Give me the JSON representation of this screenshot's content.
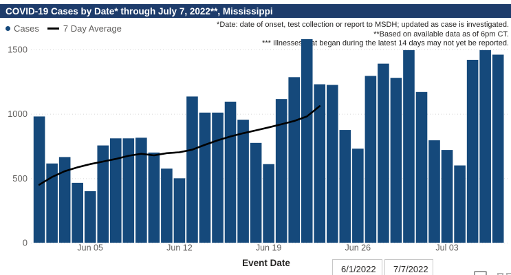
{
  "header": {
    "title": "COVID-19 Cases by Date* through July 7, 2022**, Mississippi",
    "bg_color": "#1e3c6b"
  },
  "legend": {
    "cases_label": "Cases",
    "avg_label": "7 Day Average",
    "cases_color": "#15497b",
    "avg_color": "#000000"
  },
  "notes": {
    "line1": "*Date: date of onset, test collection or report to MSDH; updated as case is investigated.",
    "line2": "**Based on available data as of 6pm CT.",
    "line3": "*** Illnesses that began during the latest 14 days may not yet be reported."
  },
  "chart_data": {
    "type": "bar",
    "title": "COVID-19 Cases by Date* through July 7, 2022**, Mississippi",
    "xlabel": "Event Date",
    "ylabel": "",
    "ylim": [
      0,
      1620
    ],
    "grid": "dotted-horizontal",
    "legend_position": "top-left",
    "bar_color": "#15497b",
    "line_color": "#000000",
    "x": [
      "Jun 1",
      "Jun 2",
      "Jun 3",
      "Jun 4",
      "Jun 5",
      "Jun 6",
      "Jun 7",
      "Jun 8",
      "Jun 9",
      "Jun 10",
      "Jun 11",
      "Jun 12",
      "Jun 13",
      "Jun 14",
      "Jun 15",
      "Jun 16",
      "Jun 17",
      "Jun 18",
      "Jun 19",
      "Jun 20",
      "Jun 21",
      "Jun 22",
      "Jun 23",
      "Jun 24",
      "Jun 25",
      "Jun 26",
      "Jun 27",
      "Jun 28",
      "Jun 29",
      "Jun 30",
      "Jul 1",
      "Jul 2",
      "Jul 3",
      "Jul 4",
      "Jul 5",
      "Jul 6",
      "Jul 7"
    ],
    "series": [
      {
        "name": "Cases",
        "type": "bar",
        "values": [
          980,
          615,
          665,
          465,
          400,
          755,
          810,
          810,
          815,
          700,
          575,
          500,
          1135,
          1010,
          1010,
          1095,
          955,
          775,
          610,
          1115,
          1285,
          1580,
          1230,
          1225,
          875,
          730,
          1295,
          1390,
          1280,
          1495,
          1170,
          795,
          720,
          600,
          1420,
          1495,
          1460
        ]
      },
      {
        "name": "7 Day Average",
        "type": "line",
        "values": [
          450,
          510,
          555,
          585,
          610,
          630,
          650,
          675,
          690,
          678,
          695,
          702,
          722,
          760,
          795,
          825,
          850,
          872,
          895,
          920,
          945,
          980,
          1060
        ]
      }
    ],
    "y_ticks": [
      0,
      500,
      1000,
      1500
    ],
    "y_tick_labels": [
      "0",
      "500",
      "1000",
      "1500"
    ],
    "x_ticks": [
      {
        "index": 4,
        "label": "Jun 05"
      },
      {
        "index": 11,
        "label": "Jun 12"
      },
      {
        "index": 18,
        "label": "Jun 19"
      },
      {
        "index": 25,
        "label": "Jun 26"
      },
      {
        "index": 32,
        "label": "Jul 03"
      }
    ]
  },
  "slicer": {
    "start_value": "6/1/2022",
    "end_value": "7/7/2022"
  }
}
